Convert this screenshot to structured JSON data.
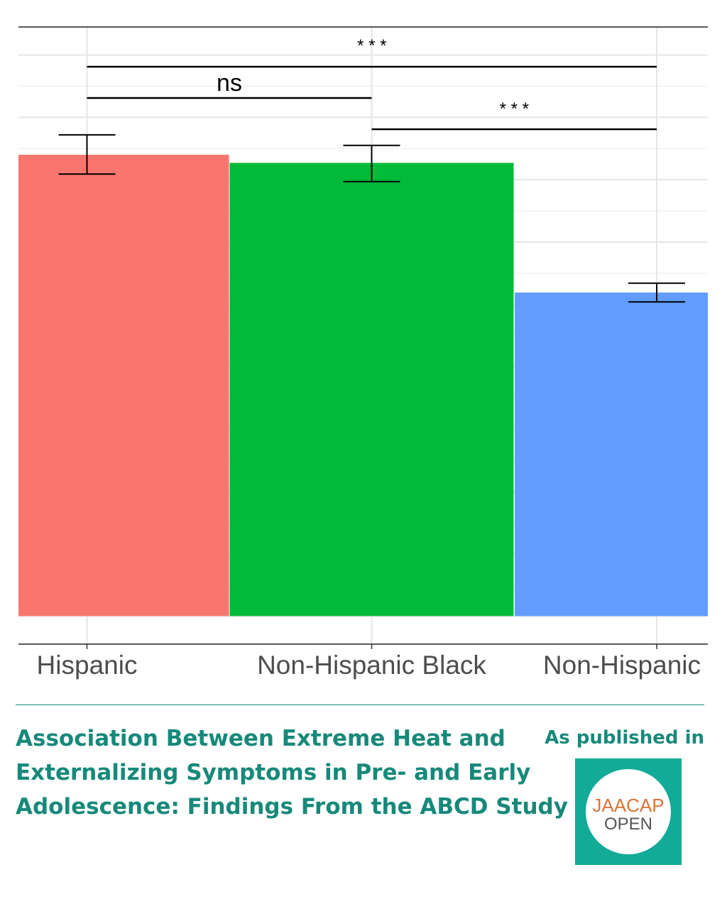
{
  "chart_data": {
    "type": "bar",
    "categories": [
      "Hispanic",
      "Non-Hispanic Black",
      "Non-Hispanic"
    ],
    "values": [
      0.74,
      0.727,
      0.519
    ],
    "error_low": [
      0.709,
      0.697,
      0.504
    ],
    "error_high": [
      0.772,
      0.755,
      0.534
    ],
    "colors": [
      "#f8766d",
      "#00ba38",
      "#619cff"
    ],
    "ylim": [
      -0.045,
      0.945
    ],
    "grid": true,
    "significance": [
      {
        "from": 0,
        "to": 2,
        "label": "* * *"
      },
      {
        "from": 0,
        "to": 1,
        "label": "ns"
      },
      {
        "from": 1,
        "to": 2,
        "label": "* * *"
      }
    ]
  },
  "footer": {
    "title_lines": [
      "Association Between Extreme Heat and",
      "Externalizing Symptoms in Pre- and Early",
      "Adolescence: Findings From the ABCD Study"
    ],
    "published_label": "As published in",
    "logo_top": "JAACAP",
    "logo_bottom": "OPEN",
    "accent_color": "#17897a",
    "logo_color": "#11ab98"
  }
}
